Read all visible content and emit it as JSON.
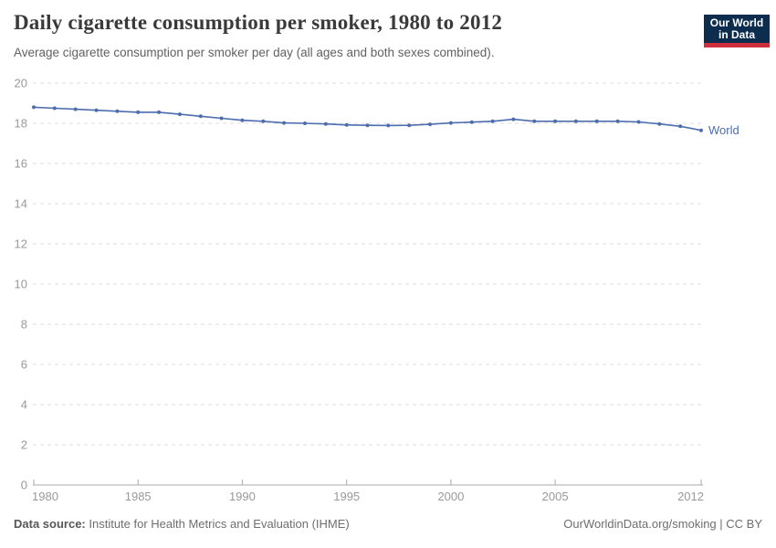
{
  "header": {
    "title": "Daily cigarette consumption per smoker, 1980 to 2012",
    "subtitle": "Average cigarette consumption per smoker per day (all ages and both sexes combined).",
    "logo": {
      "line1": "Our World",
      "line2": "in Data",
      "bg_color": "#0d2d4e",
      "accent_color": "#cf2e3c"
    }
  },
  "chart_data": {
    "type": "line",
    "title": "Daily cigarette consumption per smoker, 1980 to 2012",
    "subtitle": "Average cigarette consumption per smoker per day (all ages and both sexes combined).",
    "xlabel": "",
    "ylabel": "",
    "ylim": [
      0,
      20
    ],
    "yticks": [
      0,
      2,
      4,
      6,
      8,
      10,
      12,
      14,
      16,
      18,
      20
    ],
    "xticks": [
      1980,
      1985,
      1990,
      1995,
      2000,
      2005,
      2012
    ],
    "grid": "horizontal-dashed",
    "legend_position": "end-of-line",
    "x": [
      1980,
      1981,
      1982,
      1983,
      1984,
      1985,
      1986,
      1987,
      1988,
      1989,
      1990,
      1991,
      1992,
      1993,
      1994,
      1995,
      1996,
      1997,
      1998,
      1999,
      2000,
      2001,
      2002,
      2003,
      2004,
      2005,
      2006,
      2007,
      2008,
      2009,
      2010,
      2011,
      2012
    ],
    "series": [
      {
        "name": "World",
        "color": "#4d6dae",
        "values": [
          18.8,
          18.75,
          18.7,
          18.65,
          18.6,
          18.55,
          18.55,
          18.45,
          18.35,
          18.25,
          18.15,
          18.1,
          18.02,
          18.0,
          17.97,
          17.92,
          17.9,
          17.89,
          17.9,
          17.95,
          18.02,
          18.06,
          18.1,
          18.2,
          18.1,
          18.1,
          18.1,
          18.1,
          18.1,
          18.07,
          17.97,
          17.85,
          17.65
        ]
      }
    ]
  },
  "footer": {
    "source_label": "Data source:",
    "source_value": " Institute for Health Metrics and Evaluation (IHME)",
    "credit": "OurWorldinData.org/smoking | CC BY"
  }
}
